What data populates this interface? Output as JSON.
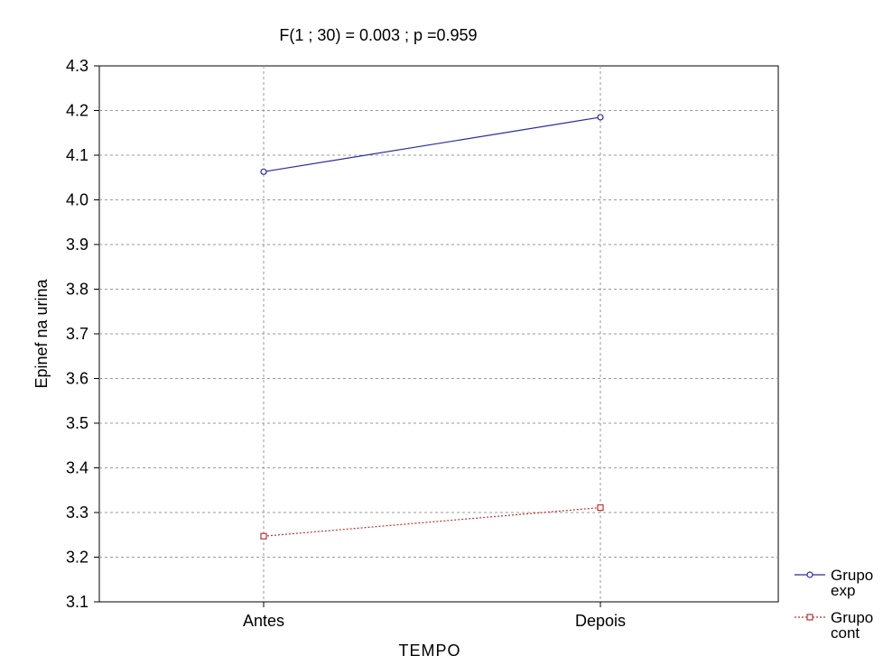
{
  "chart_data": {
    "type": "line",
    "title": "F(1 ; 30) = 0.003 ; p =0.959",
    "xlabel": "TEMPO",
    "ylabel": "Epinef na urina",
    "categories": [
      "Antes",
      "Depois"
    ],
    "ylim": [
      3.1,
      4.3
    ],
    "yticks": [
      "3.1",
      "3.2",
      "3.3",
      "3.4",
      "3.5",
      "3.6",
      "3.7",
      "3.8",
      "3.9",
      "4.0",
      "4.1",
      "4.2",
      "4.3"
    ],
    "grid": true,
    "legend_position": "bottom-right",
    "series": [
      {
        "name": "Grupo exp",
        "legend_lines": [
          "Grupo",
          "exp"
        ],
        "values": [
          4.063,
          4.185
        ],
        "color": "#2a2aa8",
        "marker": "circle",
        "line_style": "solid"
      },
      {
        "name": "Grupo cont",
        "legend_lines": [
          "Grupo",
          "cont"
        ],
        "values": [
          3.247,
          3.311
        ],
        "color": "#c03030",
        "marker": "square",
        "line_style": "dashed"
      }
    ]
  }
}
